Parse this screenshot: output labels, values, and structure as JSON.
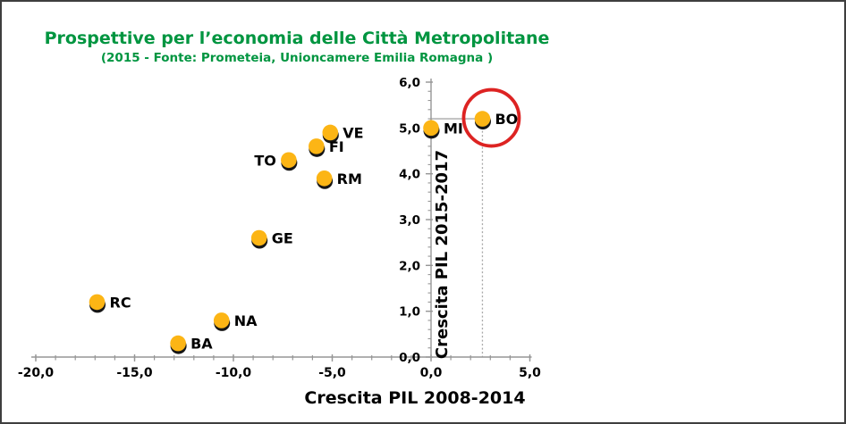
{
  "chart_data": {
    "type": "scatter",
    "title": "Prospettive per l’economia delle Città Metropolitane",
    "subtitle": "(2015 - Fonte: Prometeia, Unioncamere Emilia Romagna )",
    "xlabel": "Crescita PIL 2008-2014",
    "ylabel": "Crescita PIL 2015-2017",
    "xlim": [
      -20,
      5
    ],
    "ylim": [
      0,
      6
    ],
    "x_tick_values": [
      -20,
      -15,
      -10,
      -5,
      0,
      5
    ],
    "x_tick_labels": [
      "-20,0",
      "-15,0",
      "-10,0",
      "-5,0",
      "0,0",
      "5,0"
    ],
    "y_tick_values": [
      0,
      1,
      2,
      3,
      4,
      5,
      6
    ],
    "y_tick_labels": [
      "0,0",
      "1,0",
      "2,0",
      "3,0",
      "4,0",
      "5,0",
      "6,0"
    ],
    "x_minor_step": 1.0,
    "y_minor_step": 0.2,
    "grid": false,
    "legend": "none",
    "points": [
      {
        "label": "BO",
        "x": 2.6,
        "y": 5.2,
        "label_side": "right",
        "highlighted": true
      },
      {
        "label": "MI",
        "x": 0.0,
        "y": 5.0,
        "label_side": "right",
        "highlighted": false
      },
      {
        "label": "VE",
        "x": -5.1,
        "y": 4.9,
        "label_side": "right",
        "highlighted": false
      },
      {
        "label": "FI",
        "x": -5.8,
        "y": 4.6,
        "label_side": "right",
        "highlighted": false
      },
      {
        "label": "TO",
        "x": -7.2,
        "y": 4.3,
        "label_side": "left",
        "highlighted": false
      },
      {
        "label": "RM",
        "x": -5.4,
        "y": 3.9,
        "label_side": "right",
        "highlighted": false
      },
      {
        "label": "GE",
        "x": -8.7,
        "y": 2.6,
        "label_side": "right",
        "highlighted": false
      },
      {
        "label": "RC",
        "x": -16.9,
        "y": 1.2,
        "label_side": "right",
        "highlighted": false
      },
      {
        "label": "NA",
        "x": -10.6,
        "y": 0.8,
        "label_side": "right",
        "highlighted": false
      },
      {
        "label": "BA",
        "x": -12.8,
        "y": 0.3,
        "label_side": "right",
        "highlighted": false
      }
    ],
    "annotations": {
      "highlight_circle": {
        "target": "BO",
        "shape": "red-ellipse"
      },
      "reference_lines": {
        "target": "BO",
        "horizontal": "solid-to-y-axis",
        "vertical": "dotted-to-x-axis"
      }
    },
    "colors": {
      "title_green": "#009540",
      "marker_gold": "#FCB515",
      "marker_shadow": "#161616",
      "axis_gray": "#969696",
      "reference_gray": "#a8a8a8",
      "highlight_red": "#DD2322",
      "text_black": "#000000"
    }
  }
}
